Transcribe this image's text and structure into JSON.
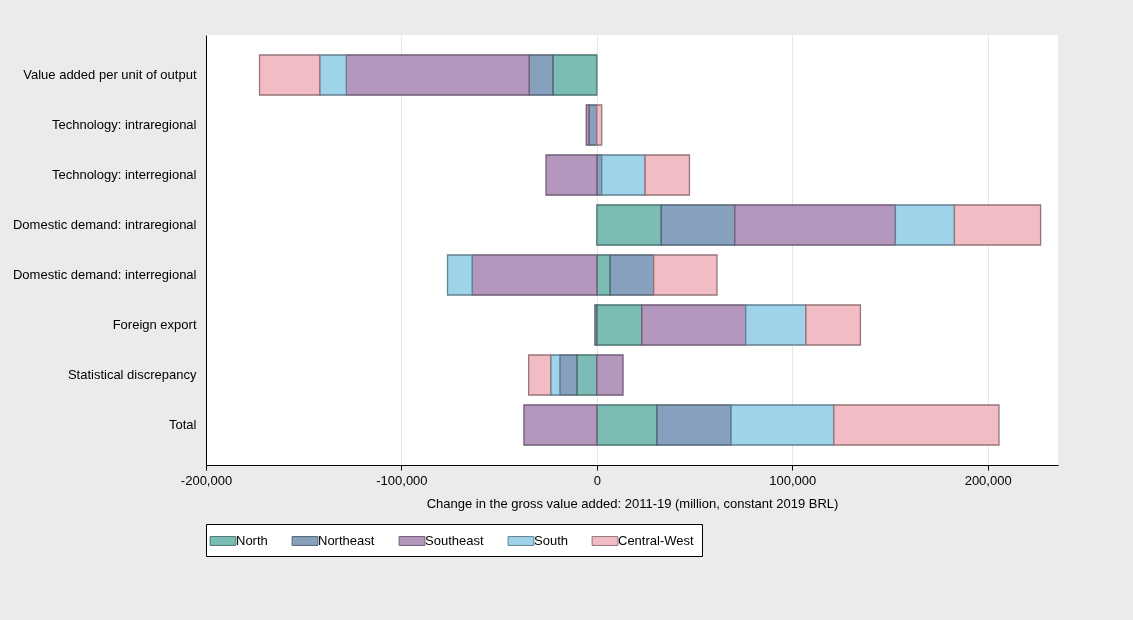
{
  "chart_data": {
    "type": "bar",
    "orientation": "horizontal",
    "stacked": true,
    "categories": [
      "Value added per unit of output",
      "Technology: intraregional",
      "Technology: interregional",
      "Domestic demand: intraregional",
      "Domestic demand: interregional",
      "Foreign export",
      "Statistical discrepancy",
      "Total"
    ],
    "series": [
      {
        "name": "North",
        "color": "#7bbdb5",
        "values": [
          -22500,
          null,
          null,
          33000,
          6800,
          23000,
          -10200,
          30800
        ]
      },
      {
        "name": "Northeast",
        "color": "#86a0bd",
        "values": [
          -12100,
          -4000,
          2500,
          37600,
          22300,
          -1000,
          -8700,
          37900
        ]
      },
      {
        "name": "Southeast",
        "color": "#b397bc",
        "values": [
          -93600,
          -1400,
          -26000,
          82200,
          -63800,
          53200,
          13400,
          -37300
        ]
      },
      {
        "name": "South",
        "color": "#9ed3ea",
        "values": [
          -13600,
          null,
          22200,
          30200,
          -12600,
          30800,
          -4700,
          52600
        ]
      },
      {
        "name": "Central-West",
        "color": "#f2bcc4",
        "values": [
          -30800,
          2500,
          22700,
          44100,
          32400,
          27900,
          -11300,
          84500
        ]
      }
    ],
    "xlim": [
      -200000,
      236000
    ],
    "xticks": [
      {
        "value": -200000,
        "label": "-200,000"
      },
      {
        "value": -100000,
        "label": "-100,000"
      },
      0,
      {
        "value": 100000,
        "label": "100,000"
      },
      {
        "value": 200000,
        "label": "200,000"
      }
    ],
    "xlabel": "Change in the gross value added: 2011-19 (million, constant 2019 BRL)",
    "grid": "x",
    "legend": "bottom"
  }
}
